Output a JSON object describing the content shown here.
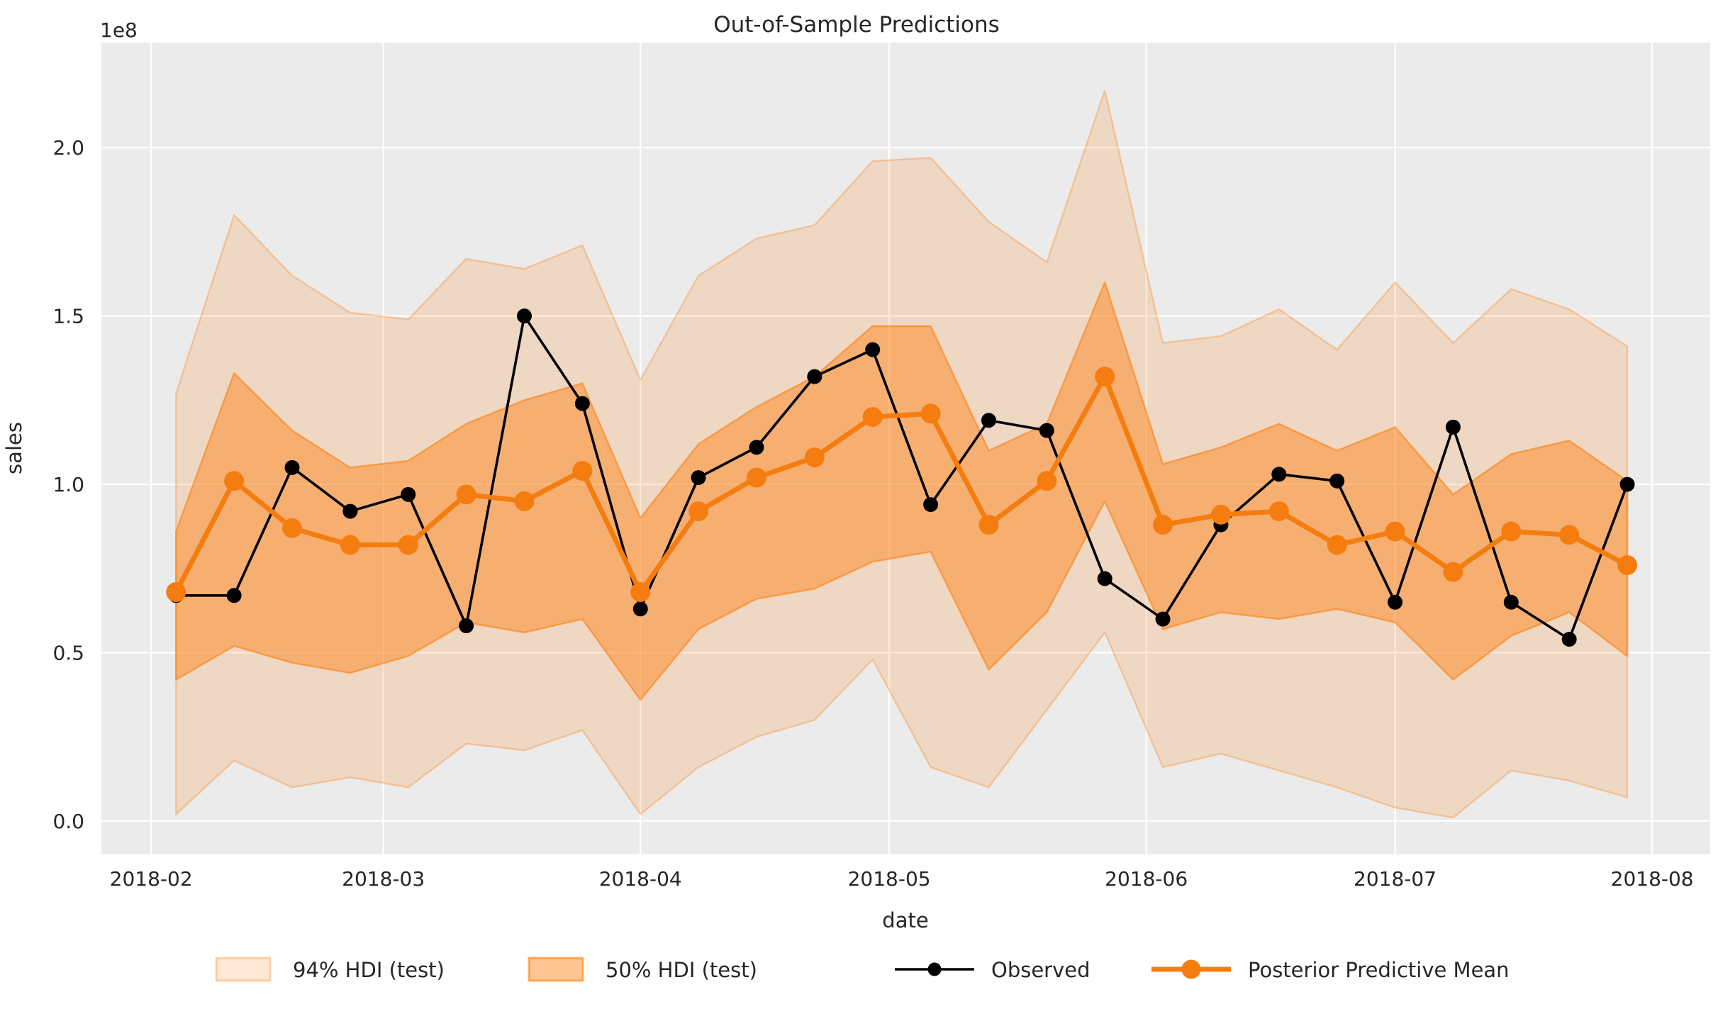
{
  "title": "Out-of-Sample Predictions",
  "colors": {
    "plot_background": "#ebebeb",
    "grid": "#ffffff",
    "observed": "#000000",
    "mean": "#f57d0f",
    "band94_fill": "rgba(255,127,14,0.18)",
    "band94_edge": "rgba(255,127,14,0.32)",
    "band50_fill": "rgba(255,127,14,0.45)",
    "band50_edge": "rgba(255,127,14,0.60)",
    "text": "#262626"
  },
  "legend": {
    "items": [
      {
        "label": "94% HDI (test)",
        "marker": "band-94"
      },
      {
        "label": "50% HDI (test)",
        "marker": "band-50"
      },
      {
        "label": "Observed",
        "marker": "line-observed"
      },
      {
        "label": "Posterior Predictive Mean",
        "marker": "line-mean"
      }
    ]
  },
  "chart_data": {
    "type": "line",
    "title": "Out-of-Sample Predictions",
    "xlabel": "date",
    "ylabel": "sales",
    "y_offset_text": "1e8",
    "units": "1e8",
    "grid": true,
    "legend_position": "bottom",
    "ylim": [
      -0.099,
      2.312
    ],
    "xlim_dates": [
      "2018-01-26",
      "2018-08-08"
    ],
    "yticks": {
      "values": [
        0.0,
        0.5,
        1.0,
        1.5,
        2.0
      ],
      "labels": [
        "0.0",
        "0.5",
        "1.0",
        "1.5",
        "2.0"
      ]
    },
    "xticks": {
      "dates": [
        "2018-02-01",
        "2018-03-01",
        "2018-04-01",
        "2018-05-01",
        "2018-06-01",
        "2018-07-01",
        "2018-08-01"
      ],
      "labels": [
        "2018-02",
        "2018-03",
        "2018-04",
        "2018-05",
        "2018-06",
        "2018-07",
        "2018-08"
      ]
    },
    "x": [
      "2018-02-04",
      "2018-02-11",
      "2018-02-18",
      "2018-02-25",
      "2018-03-04",
      "2018-03-11",
      "2018-03-18",
      "2018-03-25",
      "2018-04-01",
      "2018-04-08",
      "2018-04-15",
      "2018-04-22",
      "2018-04-29",
      "2018-05-06",
      "2018-05-13",
      "2018-05-20",
      "2018-05-27",
      "2018-06-03",
      "2018-06-10",
      "2018-06-17",
      "2018-06-24",
      "2018-07-01",
      "2018-07-08",
      "2018-07-15",
      "2018-07-22",
      "2018-07-29"
    ],
    "series": [
      {
        "name": "Observed",
        "color": "#000000",
        "values": [
          0.67,
          0.67,
          1.05,
          0.92,
          0.97,
          0.58,
          1.5,
          1.24,
          0.63,
          1.02,
          1.11,
          1.32,
          1.4,
          0.94,
          1.19,
          1.16,
          0.72,
          0.6,
          0.88,
          1.03,
          1.01,
          0.65,
          1.17,
          0.65,
          0.54,
          1.0
        ]
      },
      {
        "name": "Posterior Predictive Mean",
        "color": "#f57d0f",
        "values": [
          0.68,
          1.01,
          0.87,
          0.82,
          0.82,
          0.97,
          0.95,
          1.04,
          0.68,
          0.92,
          1.02,
          1.08,
          1.2,
          1.21,
          0.88,
          1.01,
          1.32,
          0.88,
          0.91,
          0.92,
          0.82,
          0.86,
          0.74,
          0.86,
          0.85,
          0.76
        ]
      }
    ],
    "bands": [
      {
        "name": "94% HDI (test)",
        "hi": [
          1.27,
          1.8,
          1.62,
          1.51,
          1.49,
          1.67,
          1.64,
          1.71,
          1.31,
          1.62,
          1.73,
          1.77,
          1.96,
          1.97,
          1.78,
          1.66,
          2.17,
          1.42,
          1.44,
          1.52,
          1.4,
          1.6,
          1.42,
          1.58,
          1.52,
          1.41
        ],
        "lo": [
          0.02,
          0.18,
          0.1,
          0.13,
          0.1,
          0.23,
          0.21,
          0.27,
          0.02,
          0.16,
          0.25,
          0.3,
          0.48,
          0.16,
          0.1,
          0.33,
          0.56,
          0.16,
          0.2,
          0.15,
          0.1,
          0.04,
          0.01,
          0.15,
          0.12,
          0.07
        ]
      },
      {
        "name": "50% HDI (test)",
        "hi": [
          0.86,
          1.33,
          1.16,
          1.05,
          1.07,
          1.18,
          1.25,
          1.3,
          0.9,
          1.12,
          1.23,
          1.32,
          1.47,
          1.47,
          1.1,
          1.18,
          1.6,
          1.06,
          1.11,
          1.18,
          1.1,
          1.17,
          0.97,
          1.09,
          1.13,
          1.01
        ],
        "lo": [
          0.42,
          0.52,
          0.47,
          0.44,
          0.49,
          0.59,
          0.56,
          0.6,
          0.36,
          0.57,
          0.66,
          0.69,
          0.77,
          0.8,
          0.45,
          0.62,
          0.95,
          0.57,
          0.62,
          0.6,
          0.63,
          0.59,
          0.42,
          0.55,
          0.62,
          0.49
        ]
      }
    ]
  }
}
